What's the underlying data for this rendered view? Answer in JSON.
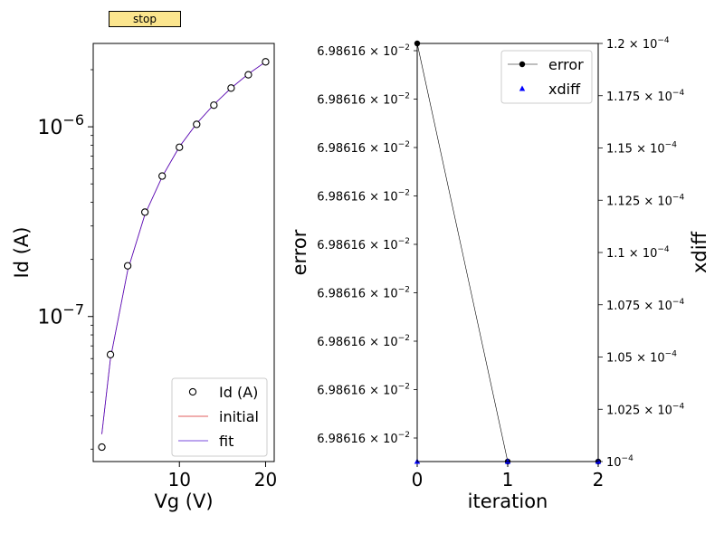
{
  "stop_button": {
    "label": "stop"
  },
  "chart_data": [
    {
      "type": "scatter",
      "xlabel": "Vg (V)",
      "ylabel": "Id (A)",
      "xlim": [
        0,
        21
      ],
      "ylim": [
        1.72e-08,
        2.75e-06
      ],
      "yscale": "log",
      "xticks": [
        10,
        20
      ],
      "xtick_labels": [
        "10",
        "20"
      ],
      "yticks": [
        1e-07,
        1e-06
      ],
      "ytick_labels": [
        {
          "base": "10",
          "exp": "−7"
        },
        {
          "base": "10",
          "exp": "−6"
        }
      ],
      "legend_position": "lower right",
      "series": [
        {
          "name": "Id (A)",
          "kind": "markers",
          "marker": "open-circle",
          "color": "#000000",
          "x": [
            1,
            2,
            4,
            6,
            8,
            10,
            12,
            14,
            16,
            18,
            20
          ],
          "y": [
            2.05e-08,
            6.3e-08,
            1.85e-07,
            3.55e-07,
            5.5e-07,
            7.8e-07,
            1.03e-06,
            1.3e-06,
            1.6e-06,
            1.88e-06,
            2.2e-06
          ]
        },
        {
          "name": "initial",
          "kind": "line",
          "color": "#d62728",
          "x": [
            1,
            2,
            4,
            6,
            8,
            10,
            12,
            14,
            16,
            18,
            20
          ],
          "y": [
            2.4e-08,
            6e-08,
            1.75e-07,
            3.45e-07,
            5.45e-07,
            7.85e-07,
            1.04e-06,
            1.31e-06,
            1.6e-06,
            1.9e-06,
            2.2e-06
          ]
        },
        {
          "name": "fit",
          "kind": "line",
          "color": "#4b0fd0",
          "x": [
            1,
            2,
            4,
            6,
            8,
            10,
            12,
            14,
            16,
            18,
            20
          ],
          "y": [
            2.4e-08,
            6e-08,
            1.75e-07,
            3.45e-07,
            5.45e-07,
            7.85e-07,
            1.04e-06,
            1.31e-06,
            1.6e-06,
            1.9e-06,
            2.2e-06
          ]
        }
      ]
    },
    {
      "type": "line",
      "xlabel": "iteration",
      "ylabel": "error",
      "y2label": "xdiff",
      "xlim": [
        0,
        2
      ],
      "xticks": [
        0,
        1,
        2
      ],
      "xtick_labels": [
        "0",
        "1",
        "2"
      ],
      "left_ytick_labels": [
        {
          "base": "6.98616 × 10",
          "exp": "−2"
        },
        {
          "base": "6.98616 × 10",
          "exp": "−2"
        },
        {
          "base": "6.98616 × 10",
          "exp": "−2"
        },
        {
          "base": "6.98616 × 10",
          "exp": "−2"
        },
        {
          "base": "6.98616 × 10",
          "exp": "−2"
        },
        {
          "base": "6.98616 × 10",
          "exp": "−2"
        },
        {
          "base": "6.98616 × 10",
          "exp": "−2"
        },
        {
          "base": "6.98616 × 10",
          "exp": "−2"
        },
        {
          "base": "6.98616 × 10",
          "exp": "−2"
        }
      ],
      "right_ylim": [
        0.0001,
        0.00012
      ],
      "right_yticks": [
        0.0001,
        0.0001025,
        0.000105,
        0.0001075,
        0.00011,
        0.0001125,
        0.000115,
        0.0001175,
        0.00012
      ],
      "right_ytick_labels": [
        {
          "base": "10",
          "exp": "−4"
        },
        {
          "base": "1.025 × 10",
          "exp": "−4"
        },
        {
          "base": "1.05 × 10",
          "exp": "−4"
        },
        {
          "base": "1.075 × 10",
          "exp": "−4"
        },
        {
          "base": "1.1 × 10",
          "exp": "−4"
        },
        {
          "base": "1.125 × 10",
          "exp": "−4"
        },
        {
          "base": "1.15 × 10",
          "exp": "−4"
        },
        {
          "base": "1.175 × 10",
          "exp": "−4"
        },
        {
          "base": "1.2 × 10",
          "exp": "−4"
        }
      ],
      "legend_position": "upper right",
      "series": [
        {
          "name": "error",
          "axis": "left",
          "kind": "line-markers",
          "marker": "filled-circle",
          "color": "#000000",
          "x": [
            0,
            1,
            2
          ],
          "y_frac": [
            1.0,
            0.0,
            0.0
          ]
        },
        {
          "name": "xdiff",
          "axis": "right",
          "kind": "markers",
          "marker": "triangle",
          "color": "#0000ff",
          "x": [
            0,
            1,
            2
          ],
          "y": [
            0.0001,
            0.0001,
            0.0001
          ]
        }
      ]
    }
  ]
}
